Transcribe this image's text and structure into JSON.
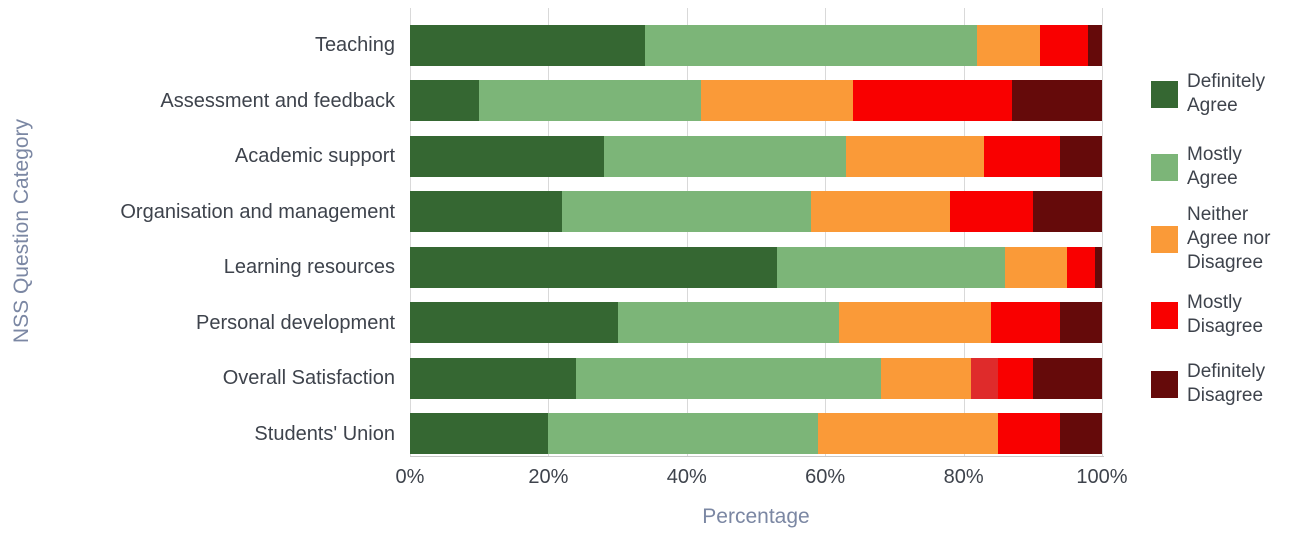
{
  "chart_data": {
    "type": "bar",
    "variant": "horizontal_stacked",
    "title": "",
    "xlabel": "Percentage",
    "ylabel": "NSS Question Category",
    "xlim": [
      0,
      100
    ],
    "x_ticks": [
      0,
      20,
      40,
      60,
      80,
      100
    ],
    "x_tick_labels": [
      "0%",
      "20%",
      "40%",
      "60%",
      "80%",
      "100%"
    ],
    "grid": "vertical-gridlines-on",
    "legend_position": "right",
    "categories": [
      "Teaching",
      "Assessment and feedback",
      "Academic support",
      "Organisation and management",
      "Learning resources",
      "Personal development",
      "Overall Satisfaction",
      "Students' Union"
    ],
    "series": [
      {
        "name": "Definitely Agree",
        "color": "#356732",
        "values": [
          34,
          10,
          28,
          22,
          53,
          30,
          24,
          20
        ]
      },
      {
        "name": "Mostly Agree",
        "color": "#7cb578",
        "values": [
          48,
          32,
          35,
          36,
          33,
          32,
          44,
          39
        ]
      },
      {
        "name": "Neither Agree nor Disagree",
        "color": "#fa9a38",
        "values": [
          9,
          22,
          20,
          20,
          9,
          22,
          13,
          26
        ]
      },
      {
        "name": "Mostly Disagree",
        "color": "#f90000",
        "values": [
          7,
          23,
          11,
          12,
          4,
          10,
          9,
          9
        ]
      },
      {
        "name": "Definitely Disagree",
        "color": "#650a0a",
        "values": [
          2,
          13,
          6,
          10,
          1,
          6,
          10,
          6
        ]
      }
    ],
    "render_override": {
      "category": "Overall Satisfaction",
      "series": "Mostly Disagree",
      "note": "left portion of this red segment appears as a lighter red",
      "first_value": 4,
      "first_color": "#df2b2b"
    }
  },
  "legend": {
    "items": [
      {
        "label": "Definitely\nAgree",
        "color": "#356732"
      },
      {
        "label": "Mostly\nAgree",
        "color": "#7cb578"
      },
      {
        "label": "Neither\nAgree nor\nDisagree",
        "color": "#fa9a38"
      },
      {
        "label": "Mostly\nDisagree",
        "color": "#f90000"
      },
      {
        "label": "Definitely\nDisagree",
        "color": "#650a0a"
      }
    ]
  },
  "colors": {
    "gridline": "#d9d9d9",
    "axis_line": "#c8c8c8",
    "tick_text": "#3e434c",
    "axis_title_text": "#7b87a3",
    "background": "#ffffff"
  }
}
